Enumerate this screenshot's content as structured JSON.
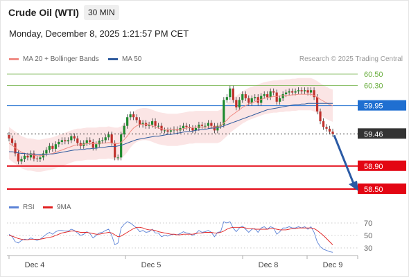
{
  "header": {
    "title": "Crude Oil (WTI)",
    "timeframe": "30 MIN",
    "datetime": "Monday, December 8, 2025 1:21:57 PM CET"
  },
  "legend": {
    "ma20": {
      "label": "MA 20 + Bollinger Bands",
      "color": "#f08c84"
    },
    "ma50": {
      "label": "MA 50",
      "color": "#2f5b9e"
    },
    "credit": "Research © 2025 Trading Central"
  },
  "rsi_legend": {
    "rsi": {
      "label": "RSI",
      "color": "#5b82d6"
    },
    "ma9": {
      "label": "9MA",
      "color": "#e12020"
    }
  },
  "chart_data": [
    {
      "type": "candlestick",
      "x_ticks": [
        "Dec 4",
        "Dec 5",
        "Dec 8",
        "Dec 9"
      ],
      "price_levels": [
        {
          "label": "60.50",
          "value": 60.5,
          "kind": "resistance",
          "color": "#6aae3f"
        },
        {
          "label": "60.30",
          "value": 60.3,
          "kind": "resistance",
          "color": "#6aae3f"
        },
        {
          "label": "59.95",
          "value": 59.95,
          "kind": "pivot",
          "color": "#1f6fd1"
        },
        {
          "label": "59.46",
          "value": 59.46,
          "kind": "last_price",
          "color": "#333333"
        },
        {
          "label": "58.90",
          "value": 58.9,
          "kind": "support",
          "color": "#e30613"
        },
        {
          "label": "58.50",
          "value": 58.5,
          "kind": "support",
          "color": "#e30613"
        }
      ],
      "forecast_arrow": {
        "from": 59.46,
        "to": 58.5,
        "color": "#2a5aa5"
      },
      "close": [
        59.38,
        59.3,
        59.12,
        58.98,
        59.02,
        59.08,
        59.05,
        59.12,
        59.03,
        59.02,
        59.05,
        59.12,
        59.18,
        59.25,
        59.2,
        59.28,
        59.32,
        59.35,
        59.33,
        59.35,
        59.42,
        59.38,
        59.3,
        59.25,
        59.3,
        59.35,
        59.32,
        59.22,
        59.28,
        59.34,
        59.35,
        59.4,
        59.45,
        59.3,
        59.05,
        59.05,
        59.45,
        59.6,
        59.75,
        59.8,
        59.75,
        59.7,
        59.62,
        59.65,
        59.6,
        59.62,
        59.68,
        59.6,
        59.6,
        59.52,
        59.52,
        59.5,
        59.52,
        59.54,
        59.52,
        59.56,
        59.6,
        59.58,
        59.56,
        59.52,
        59.56,
        59.62,
        59.6,
        59.6,
        59.65,
        59.6,
        59.52,
        59.6,
        59.62,
        60.05,
        60.1,
        60.25,
        60.05,
        59.92,
        60.05,
        60.15,
        60.08,
        60.0,
        60.08,
        60.1,
        60.0,
        60.12,
        60.15,
        60.1,
        60.2,
        60.18,
        60.02,
        60.08,
        60.15,
        60.18,
        60.2,
        60.18,
        60.2,
        60.22,
        60.2,
        60.22,
        60.18,
        60.22,
        60.1,
        59.85,
        59.68,
        59.58,
        59.55,
        59.5,
        59.46
      ],
      "ma20": [
        59.3,
        59.26,
        59.22,
        59.18,
        59.14,
        59.12,
        59.1,
        59.1,
        59.09,
        59.08,
        59.08,
        59.09,
        59.1,
        59.11,
        59.12,
        59.14,
        59.16,
        59.18,
        59.2,
        59.22,
        59.24,
        59.26,
        59.27,
        59.27,
        59.28,
        59.29,
        59.29,
        59.29,
        59.29,
        59.3,
        59.3,
        59.3,
        59.31,
        59.3,
        59.29,
        59.29,
        59.31,
        59.36,
        59.42,
        59.5,
        59.56,
        59.6,
        59.62,
        59.63,
        59.63,
        59.62,
        59.6,
        59.58,
        59.56,
        59.55,
        59.54,
        59.53,
        59.53,
        59.53,
        59.53,
        59.54,
        59.55,
        59.56,
        59.57,
        59.57,
        59.58,
        59.58,
        59.58,
        59.58,
        59.58,
        59.58,
        59.58,
        59.58,
        59.6,
        59.65,
        59.7,
        59.76,
        59.8,
        59.84,
        59.88,
        59.92,
        59.95,
        59.98,
        60.0,
        60.02,
        60.04,
        60.06,
        60.08,
        60.09,
        60.1,
        60.11,
        60.11,
        60.12,
        60.12,
        60.13,
        60.13,
        60.14,
        60.14,
        60.15,
        60.15,
        60.15,
        60.15,
        60.15,
        60.13,
        60.1,
        60.06,
        60.03,
        60.0,
        59.97,
        59.95
      ],
      "ma50": [
        59.15,
        59.15,
        59.14,
        59.13,
        59.12,
        59.12,
        59.11,
        59.11,
        59.11,
        59.1,
        59.1,
        59.1,
        59.1,
        59.11,
        59.11,
        59.12,
        59.13,
        59.14,
        59.15,
        59.16,
        59.17,
        59.18,
        59.18,
        59.19,
        59.19,
        59.2,
        59.2,
        59.21,
        59.21,
        59.22,
        59.22,
        59.23,
        59.24,
        59.24,
        59.24,
        59.25,
        59.26,
        59.28,
        59.3,
        59.32,
        59.34,
        59.36,
        59.37,
        59.38,
        59.39,
        59.4,
        59.41,
        59.42,
        59.42,
        59.43,
        59.44,
        59.45,
        59.45,
        59.46,
        59.47,
        59.48,
        59.49,
        59.5,
        59.5,
        59.51,
        59.52,
        59.53,
        59.53,
        59.54,
        59.55,
        59.56,
        59.56,
        59.57,
        59.58,
        59.6,
        59.62,
        59.64,
        59.66,
        59.68,
        59.7,
        59.72,
        59.74,
        59.76,
        59.78,
        59.8,
        59.82,
        59.84,
        59.86,
        59.88,
        59.89,
        59.9,
        59.91,
        59.92,
        59.93,
        59.94,
        59.95,
        59.96,
        59.97,
        59.97,
        59.98,
        59.98,
        59.99,
        59.99,
        59.99,
        59.99,
        59.99,
        59.99,
        59.99,
        59.99,
        59.99
      ]
    },
    {
      "type": "line",
      "x_ticks": [
        "Dec 4",
        "Dec 5",
        "Dec 8",
        "Dec 9"
      ],
      "y_ticks": [
        "70",
        "50",
        "30"
      ],
      "ylim": [
        20,
        80
      ],
      "rsi": [
        52,
        48,
        40,
        38,
        42,
        44,
        43,
        46,
        44,
        42,
        44,
        48,
        52,
        55,
        52,
        56,
        58,
        58,
        57,
        57,
        60,
        58,
        54,
        50,
        52,
        56,
        53,
        46,
        50,
        54,
        55,
        58,
        60,
        50,
        35,
        38,
        62,
        68,
        72,
        70,
        66,
        62,
        56,
        58,
        55,
        56,
        60,
        54,
        54,
        48,
        50,
        49,
        51,
        52,
        51,
        53,
        56,
        54,
        53,
        50,
        53,
        58,
        55,
        56,
        58,
        55,
        48,
        55,
        56,
        72,
        70,
        72,
        62,
        56,
        62,
        65,
        60,
        55,
        60,
        61,
        55,
        62,
        64,
        60,
        64,
        62,
        52,
        56,
        62,
        62,
        64,
        62,
        62,
        64,
        62,
        64,
        60,
        64,
        55,
        40,
        32,
        28,
        26,
        24,
        23
      ],
      "ma9": [
        50,
        49,
        47,
        45,
        44,
        43,
        43,
        44,
        44,
        44,
        44,
        45,
        46,
        47,
        48,
        50,
        52,
        54,
        55,
        56,
        57,
        57,
        56,
        55,
        55,
        55,
        54,
        53,
        52,
        52,
        53,
        54,
        55,
        54,
        51,
        48,
        49,
        52,
        55,
        58,
        61,
        63,
        63,
        62,
        60,
        59,
        59,
        58,
        56,
        55,
        54,
        53,
        52,
        52,
        51,
        51,
        52,
        52,
        52,
        52,
        53,
        54,
        54,
        55,
        55,
        55,
        54,
        54,
        55,
        57,
        60,
        62,
        63,
        63,
        63,
        63,
        62,
        61,
        61,
        60,
        60,
        60,
        60,
        60,
        61,
        61,
        60,
        59,
        59,
        59,
        60,
        61,
        61,
        62,
        62,
        62,
        62,
        62,
        61,
        58,
        54,
        50,
        45,
        40,
        35
      ]
    }
  ]
}
